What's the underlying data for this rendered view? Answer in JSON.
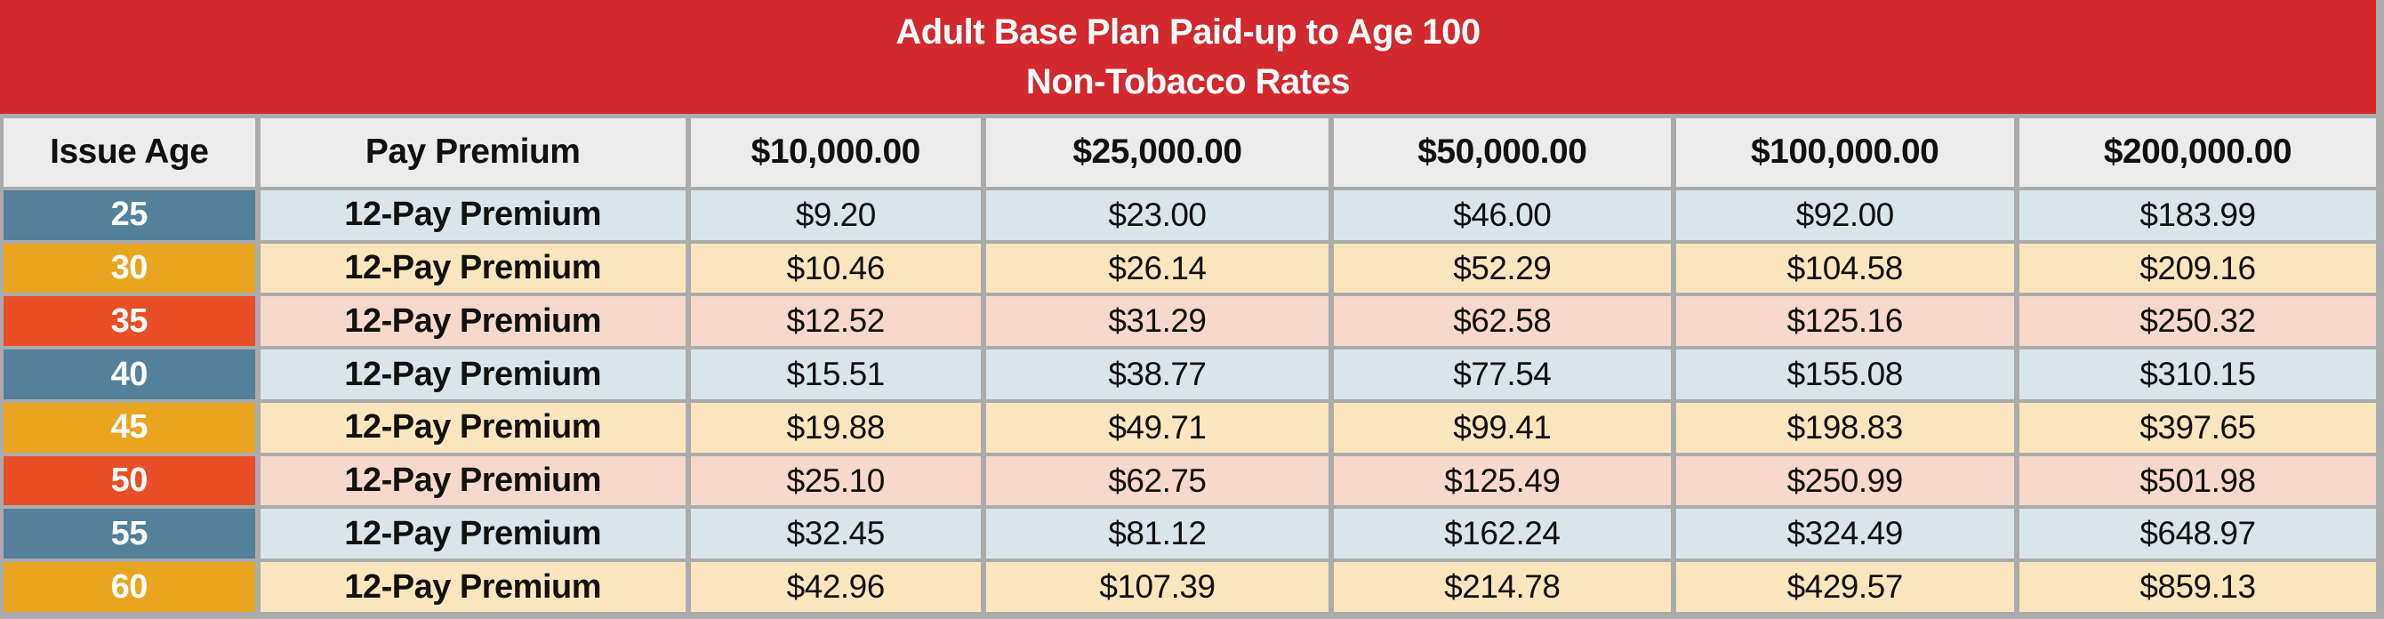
{
  "title": {
    "line1": "Adult Base Plan Paid-up to Age 100",
    "line2": "Non-Tobacco Rates"
  },
  "table": {
    "columns": [
      "Issue Age",
      "Pay Premium",
      "$10,000.00",
      "$25,000.00",
      "$50,000.00",
      "$100,000.00",
      "$200,000.00"
    ],
    "rows": [
      {
        "age": "25",
        "premium_type": "12-Pay Premium",
        "theme": "blue",
        "values": [
          "$9.20",
          "$23.00",
          "$46.00",
          "$92.00",
          "$183.99"
        ]
      },
      {
        "age": "30",
        "premium_type": "12-Pay Premium",
        "theme": "gold",
        "values": [
          "$10.46",
          "$26.14",
          "$52.29",
          "$104.58",
          "$209.16"
        ]
      },
      {
        "age": "35",
        "premium_type": "12-Pay Premium",
        "theme": "orange",
        "values": [
          "$12.52",
          "$31.29",
          "$62.58",
          "$125.16",
          "$250.32"
        ]
      },
      {
        "age": "40",
        "premium_type": "12-Pay Premium",
        "theme": "blue",
        "values": [
          "$15.51",
          "$38.77",
          "$77.54",
          "$155.08",
          "$310.15"
        ]
      },
      {
        "age": "45",
        "premium_type": "12-Pay Premium",
        "theme": "gold",
        "values": [
          "$19.88",
          "$49.71",
          "$99.41",
          "$198.83",
          "$397.65"
        ]
      },
      {
        "age": "50",
        "premium_type": "12-Pay Premium",
        "theme": "orange",
        "values": [
          "$25.10",
          "$62.75",
          "$125.49",
          "$250.99",
          "$501.98"
        ]
      },
      {
        "age": "55",
        "premium_type": "12-Pay Premium",
        "theme": "blue",
        "values": [
          "$32.45",
          "$81.12",
          "$162.24",
          "$324.49",
          "$648.97"
        ]
      },
      {
        "age": "60",
        "premium_type": "12-Pay Premium",
        "theme": "gold",
        "values": [
          "$42.96",
          "$107.39",
          "$214.78",
          "$429.57",
          "$859.13"
        ]
      }
    ]
  },
  "colors": {
    "band_red": "#D2282E",
    "border_gray": "#ABABAB",
    "header_bg": "#ECECEC",
    "age_blue": "#53809B",
    "age_gold": "#E9A51F",
    "age_orange": "#E94E26",
    "row_blue": "#D9E5EB",
    "row_cream": "#FAE6BD",
    "row_pink": "#F7D8CC"
  }
}
